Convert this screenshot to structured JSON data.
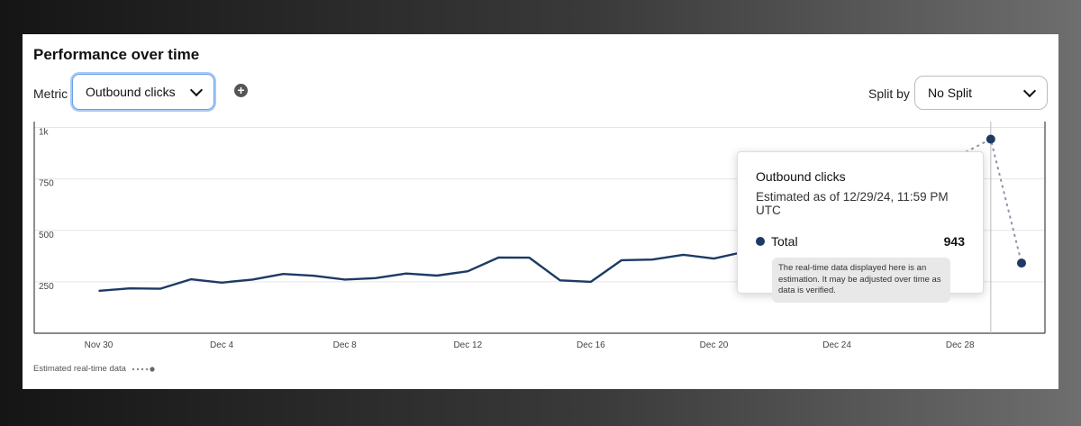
{
  "header": {
    "title": "Performance over time"
  },
  "controls": {
    "metric_label": "Metric",
    "metric_value": "Outbound clicks",
    "add_icon": "plus-circle-icon",
    "split_label": "Split by",
    "split_value": "No Split"
  },
  "chart_data": {
    "type": "line",
    "x": [
      "Nov 30",
      "Dec 1",
      "Dec 2",
      "Dec 3",
      "Dec 4",
      "Dec 5",
      "Dec 6",
      "Dec 7",
      "Dec 8",
      "Dec 9",
      "Dec 10",
      "Dec 11",
      "Dec 12",
      "Dec 13",
      "Dec 14",
      "Dec 15",
      "Dec 16",
      "Dec 17",
      "Dec 18",
      "Dec 19",
      "Dec 20",
      "Dec 21",
      "Dec 22",
      "Dec 23",
      "Dec 24",
      "Dec 25",
      "Dec 26",
      "Dec 27",
      "Dec 28",
      "Dec 29",
      "Dec 30"
    ],
    "series": [
      {
        "values": [
          206,
          218,
          216,
          262,
          246,
          261,
          288,
          279,
          261,
          268,
          290,
          280,
          301,
          368,
          367,
          257,
          250,
          355,
          358,
          381,
          363,
          396,
          null,
          null,
          null,
          null,
          null,
          null,
          866,
          null,
          null
        ]
      },
      {
        "values": [
          null,
          null,
          null,
          null,
          null,
          null,
          null,
          null,
          null,
          null,
          null,
          null,
          null,
          null,
          null,
          null,
          null,
          null,
          null,
          null,
          null,
          null,
          null,
          null,
          null,
          null,
          null,
          null,
          866,
          943,
          341
        ]
      }
    ],
    "ytick_labels": [
      "250",
      "500",
      "750",
      "1k"
    ],
    "ytick_values": [
      250,
      500,
      750,
      1000
    ],
    "xtick_labels": [
      "Nov 30",
      "Dec 4",
      "Dec 8",
      "Dec 12",
      "Dec 16",
      "Dec 20",
      "Dec 24",
      "Dec 28"
    ],
    "xtick_index": [
      0,
      4,
      8,
      12,
      16,
      20,
      24,
      28
    ],
    "ylim": [
      0,
      1000
    ],
    "grid": true,
    "colors": {
      "actual": "#1d3a63",
      "estimated": "#8a96a8"
    },
    "legend": [
      {
        "label": "Estimated real-time data",
        "style": "dotted"
      }
    ]
  },
  "tooltip": {
    "title": "Outbound clicks",
    "subtitle": "Estimated as of 12/29/24, 11:59 PM UTC",
    "series_label": "Total",
    "value": "943",
    "note": "The real-time data displayed here is an estimation. It may be adjusted over time as data is verified."
  }
}
